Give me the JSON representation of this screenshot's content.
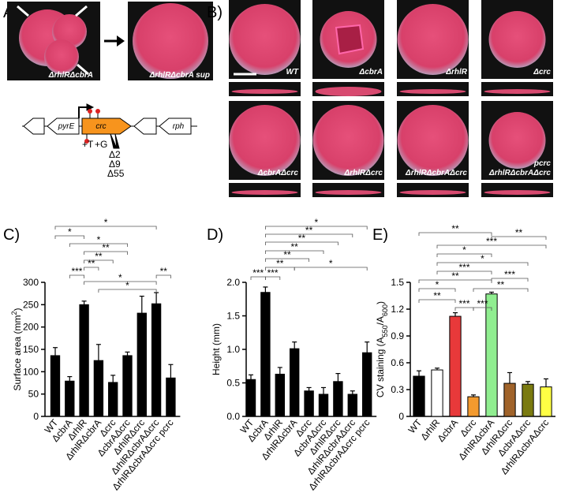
{
  "panels": {
    "a": "A)",
    "b": "B)",
    "c": "C)",
    "d": "D)",
    "e": "E)"
  },
  "panel_a": {
    "left_label": "ΔrhlRΔcbrA",
    "right_label": "ΔrhlRΔcbrA sup",
    "genes": [
      "pyrE",
      "crc",
      "rph"
    ],
    "mutations": [
      "+T",
      "+G",
      "Δ2",
      "Δ9",
      "Δ55"
    ]
  },
  "panel_b": {
    "labels": [
      "WT",
      "ΔcbrA",
      "ΔrhlR",
      "Δcrc",
      "ΔcbrAΔcrc",
      "ΔrhlRΔcrc",
      "ΔrhlRΔcbrAΔcrc",
      "pcrc",
      "ΔrhlRΔcbrAΔcrc"
    ]
  },
  "chart_data": [
    {
      "type": "bar",
      "ylabel": [
        "Surface area (mm",
        "2",
        ")"
      ],
      "categories": [
        "WT",
        "ΔcbrA",
        "ΔrhlR",
        "ΔrhlRΔcbrA",
        "Δcrc",
        "ΔcbrAΔcrc",
        "ΔrhlRΔcrc",
        "ΔrhlRΔcbrAΔcrc",
        "ΔrhlRΔcbrAΔcrc pcrc"
      ],
      "values": [
        136,
        79,
        250,
        125,
        76,
        136,
        231,
        252,
        86
      ],
      "errors": [
        18,
        10,
        8,
        36,
        16,
        8,
        38,
        25,
        30
      ],
      "color": "#000000",
      "ylim": [
        0,
        300
      ],
      "yticks": [
        0,
        50,
        100,
        150,
        200,
        250,
        300
      ],
      "annotations": [
        "*",
        "*",
        "*",
        "**",
        "**",
        "**",
        "***",
        "*",
        "*",
        "**"
      ]
    },
    {
      "type": "bar",
      "ylabel": [
        "Height  (mm)"
      ],
      "categories": [
        "WT",
        "ΔcbrA",
        "ΔrhlR",
        "ΔrhlRΔcbrA",
        "Δcrc",
        "ΔcbrAΔcrc",
        "ΔrhlRΔcrc",
        "ΔrhlRΔcbrAΔcrc",
        "ΔrhlRΔcbrAΔcrc pcrc"
      ],
      "values": [
        0.55,
        1.85,
        0.63,
        1.01,
        0.38,
        0.33,
        0.52,
        0.33,
        0.95
      ],
      "errors": [
        0.07,
        0.08,
        0.1,
        0.1,
        0.05,
        0.1,
        0.12,
        0.05,
        0.16
      ],
      "color": "#000000",
      "ylim": [
        0,
        2.0
      ],
      "yticks": [
        {
          "value": 0,
          "label": "0.0"
        },
        0.5,
        {
          "value": 1,
          "label": "1.0"
        },
        1.5,
        {
          "value": 2,
          "label": "2.0"
        }
      ],
      "annotations": [
        "*",
        "**",
        "**",
        "**",
        "**",
        "**",
        "*",
        "***",
        "***"
      ]
    },
    {
      "type": "bar",
      "ylabel": [
        "CV staining (A",
        "550",
        "/A",
        "600",
        ")"
      ],
      "categories": [
        "WT",
        "ΔrhlR",
        "ΔcbrA",
        "Δcrc",
        "ΔrhlRΔcbrA",
        "ΔrhlRΔcrc",
        "ΔcbrAΔcrc",
        "ΔrhlRΔcbrAΔcrc"
      ],
      "values": [
        0.45,
        0.52,
        1.12,
        0.22,
        1.37,
        0.37,
        0.36,
        0.33
      ],
      "errors": [
        0.06,
        0.02,
        0.04,
        0.02,
        0.02,
        0.12,
        0.03,
        0.09
      ],
      "colors": [
        "#000000",
        "#ffffff",
        "#e8393a",
        "#f39a2e",
        "#90ee90",
        "#a0632a",
        "#7a7a10",
        "#ffff44"
      ],
      "ylim": [
        0,
        1.5
      ],
      "yticks": [
        0,
        0.3,
        0.6,
        0.9,
        1.2,
        1.5
      ],
      "annotations": [
        "**",
        "**",
        "***",
        "*",
        "*",
        "***",
        "**",
        "***",
        "*",
        "**",
        "**",
        "***",
        "***"
      ]
    }
  ]
}
